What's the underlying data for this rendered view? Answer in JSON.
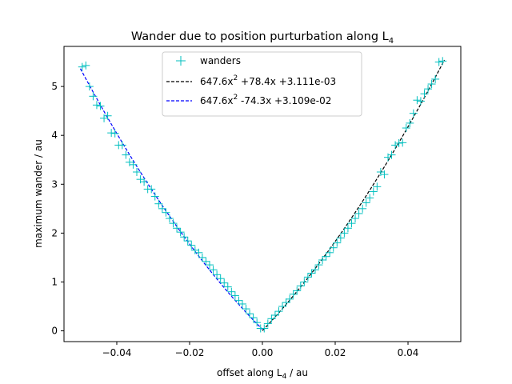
{
  "chart_data": {
    "type": "scatter",
    "title": {
      "main": "Wander due to position purturbation along L",
      "sub": "4"
    },
    "xlabel": {
      "main": "offset along L",
      "sub": "4",
      "tail": " / au"
    },
    "ylabel": "maximum wander / au",
    "xlim": [
      -0.0545,
      0.0545
    ],
    "ylim": [
      -0.22,
      5.82
    ],
    "xticks": [
      {
        "value": -0.04,
        "label": "−0.04"
      },
      {
        "value": -0.02,
        "label": "−0.02"
      },
      {
        "value": 0.0,
        "label": "0.00"
      },
      {
        "value": 0.02,
        "label": "0.02"
      },
      {
        "value": 0.04,
        "label": "0.04"
      }
    ],
    "yticks": [
      {
        "value": 0,
        "label": "0"
      },
      {
        "value": 1,
        "label": "1"
      },
      {
        "value": 2,
        "label": "2"
      },
      {
        "value": 3,
        "label": "3"
      },
      {
        "value": 4,
        "label": "4"
      },
      {
        "value": 5,
        "label": "5"
      }
    ],
    "grid": false,
    "legend_position": "top-center",
    "series": [
      {
        "name": "wanders",
        "kind": "marker",
        "marker": "+",
        "color": "#00bfbf",
        "x": [
          -0.0495,
          -0.0485,
          -0.0475,
          -0.0465,
          -0.0455,
          -0.0445,
          -0.0435,
          -0.0425,
          -0.0415,
          -0.0405,
          -0.0395,
          -0.0385,
          -0.0375,
          -0.0365,
          -0.0355,
          -0.0345,
          -0.0335,
          -0.0325,
          -0.0315,
          -0.0305,
          -0.0295,
          -0.0285,
          -0.0275,
          -0.0265,
          -0.0255,
          -0.0245,
          -0.0235,
          -0.0225,
          -0.0215,
          -0.0205,
          -0.0195,
          -0.0185,
          -0.0175,
          -0.0165,
          -0.0155,
          -0.0145,
          -0.0135,
          -0.0125,
          -0.0115,
          -0.0105,
          -0.0095,
          -0.0085,
          -0.0075,
          -0.0065,
          -0.0055,
          -0.0045,
          -0.0035,
          -0.0025,
          -0.0015,
          -0.0005,
          0.0005,
          0.0015,
          0.0025,
          0.0035,
          0.0045,
          0.0055,
          0.0065,
          0.0075,
          0.0085,
          0.0095,
          0.0105,
          0.0115,
          0.0125,
          0.0135,
          0.0145,
          0.0155,
          0.0165,
          0.0175,
          0.0185,
          0.0195,
          0.0205,
          0.0215,
          0.0225,
          0.0235,
          0.0245,
          0.0255,
          0.0265,
          0.0275,
          0.0285,
          0.0295,
          0.0305,
          0.0315,
          0.0325,
          0.0335,
          0.0345,
          0.0355,
          0.0365,
          0.0375,
          0.0385,
          0.0395,
          0.0405,
          0.0415,
          0.0425,
          0.0435,
          0.0445,
          0.0455,
          0.0465,
          0.0475,
          0.0485,
          0.0495
        ],
        "y": [
          5.4,
          5.43,
          5.0,
          4.8,
          4.62,
          4.6,
          4.35,
          4.4,
          4.05,
          4.04,
          3.8,
          3.8,
          3.6,
          3.45,
          3.4,
          3.25,
          3.1,
          3.05,
          2.9,
          2.9,
          2.75,
          2.6,
          2.5,
          2.42,
          2.3,
          2.2,
          2.1,
          2.02,
          1.92,
          1.84,
          1.75,
          1.65,
          1.6,
          1.5,
          1.42,
          1.35,
          1.25,
          1.15,
          1.07,
          0.98,
          0.9,
          0.8,
          0.72,
          0.62,
          0.55,
          0.45,
          0.35,
          0.27,
          0.17,
          0.05,
          0.05,
          0.15,
          0.25,
          0.32,
          0.4,
          0.5,
          0.58,
          0.65,
          0.75,
          0.82,
          0.92,
          1.0,
          1.1,
          1.18,
          1.25,
          1.35,
          1.45,
          1.52,
          1.6,
          1.7,
          1.8,
          1.9,
          2.0,
          2.1,
          2.2,
          2.3,
          2.4,
          2.5,
          2.62,
          2.72,
          2.85,
          2.95,
          3.25,
          3.2,
          3.55,
          3.6,
          3.8,
          3.84,
          3.85,
          4.15,
          4.25,
          4.45,
          4.72,
          4.7,
          4.85,
          4.95,
          5.05,
          5.15,
          5.5,
          5.52
        ]
      },
      {
        "name": "647.6x",
        "name_sup": "2",
        "name_tail": " +78.4x +3.111e-03",
        "kind": "fit",
        "dash": true,
        "color": "#000000",
        "a": 647.6,
        "b": 78.4,
        "c": 0.003111,
        "x_range": [
          0.0,
          0.05
        ]
      },
      {
        "name": "647.6x",
        "name_sup": "2",
        "name_tail": " -74.3x +3.109e-02",
        "kind": "fit",
        "dash": true,
        "color": "#0000ff",
        "a": 647.6,
        "b": -74.3,
        "c": 0.03109,
        "x_range": [
          -0.05,
          0.0
        ]
      }
    ]
  }
}
